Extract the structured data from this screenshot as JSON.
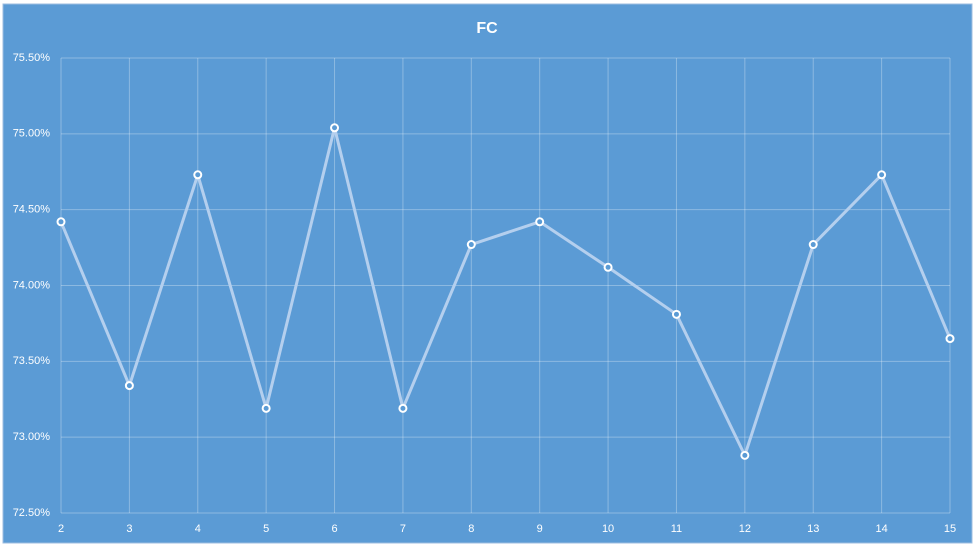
{
  "chart_data": {
    "type": "line",
    "title": "FC",
    "x": [
      2,
      3,
      4,
      5,
      6,
      7,
      8,
      9,
      10,
      11,
      12,
      13,
      14,
      15
    ],
    "series": [
      {
        "color": "#b4cfee",
        "values": [
          74.42,
          73.34,
          74.73,
          73.19,
          75.04,
          73.19,
          74.27,
          74.42,
          74.12,
          73.81,
          72.88,
          74.27,
          74.73,
          73.65
        ]
      }
    ],
    "xlim": [
      2,
      15
    ],
    "xticks": [
      2,
      3,
      4,
      5,
      6,
      7,
      8,
      9,
      10,
      11,
      12,
      13,
      14,
      15
    ],
    "ylim": [
      72.5,
      75.5
    ],
    "yticks": [
      {
        "value": 72.5,
        "label": "72.50%"
      },
      {
        "value": 73,
        "label": "73.00%"
      },
      {
        "value": 73.5,
        "label": "73.50%"
      },
      {
        "value": 74,
        "label": "74.00%"
      },
      {
        "value": 74.5,
        "label": "74.50%"
      },
      {
        "value": 75,
        "label": "75.00%"
      },
      {
        "value": 75.5,
        "label": "75.50%"
      }
    ],
    "grid": true
  }
}
